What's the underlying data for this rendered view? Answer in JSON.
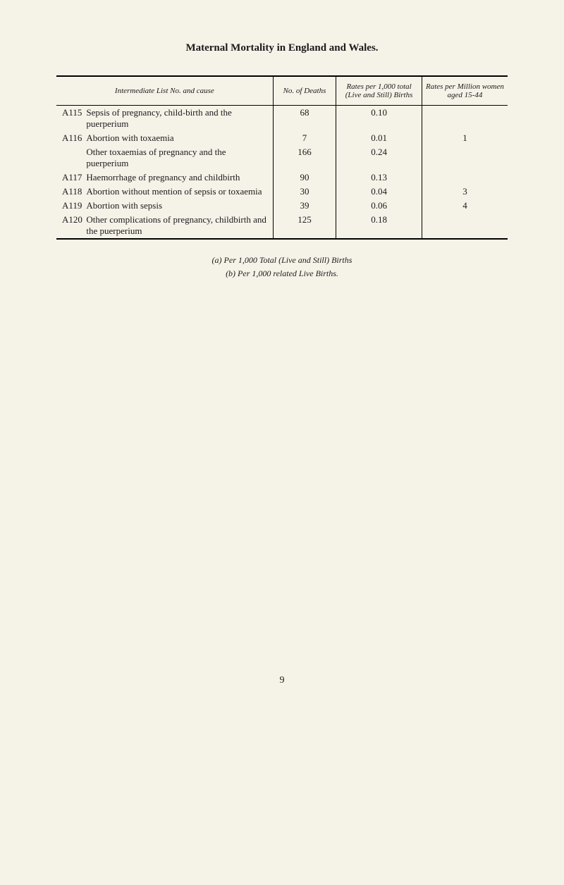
{
  "title": "Maternal Mortality in England and Wales.",
  "headers": {
    "cause": "Intermediate List No. and cause",
    "deaths": "No. of Deaths",
    "rates_births": "Rates per 1,000 total (Live and Still) Births",
    "rates_women": "Rates per Million women aged 15-44"
  },
  "rows": [
    {
      "code": "A115",
      "cause": "Sepsis of pregnancy, child-birth and the puerperium",
      "deaths": "68",
      "rate1": "0.10",
      "rate2": ""
    },
    {
      "code": "A116",
      "cause": "Abortion with toxaemia",
      "deaths": "7",
      "rate1": "0.01",
      "rate2": "1"
    },
    {
      "code": "",
      "cause": "Other toxaemias of pregnancy and the puerperium",
      "deaths": "166",
      "rate1": "0.24",
      "rate2": ""
    },
    {
      "code": "A117",
      "cause": "Haemorrhage of pregnancy and childbirth",
      "deaths": "90",
      "rate1": "0.13",
      "rate2": ""
    },
    {
      "code": "A118",
      "cause": "Abortion without mention of sepsis or toxaemia",
      "deaths": "30",
      "rate1": "0.04",
      "rate2": "3"
    },
    {
      "code": "A119",
      "cause": "Abortion with sepsis",
      "deaths": "39",
      "rate1": "0.06",
      "rate2": "4"
    },
    {
      "code": "A120",
      "cause": "Other complications of pregnancy, childbirth and the puerperium",
      "deaths": "125",
      "rate1": "0.18",
      "rate2": ""
    }
  ],
  "footnotes": {
    "a": "(a) Per 1,000 Total (Live and Still) Births",
    "b": "(b) Per 1,000 related Live Births."
  },
  "pageNumber": "9"
}
